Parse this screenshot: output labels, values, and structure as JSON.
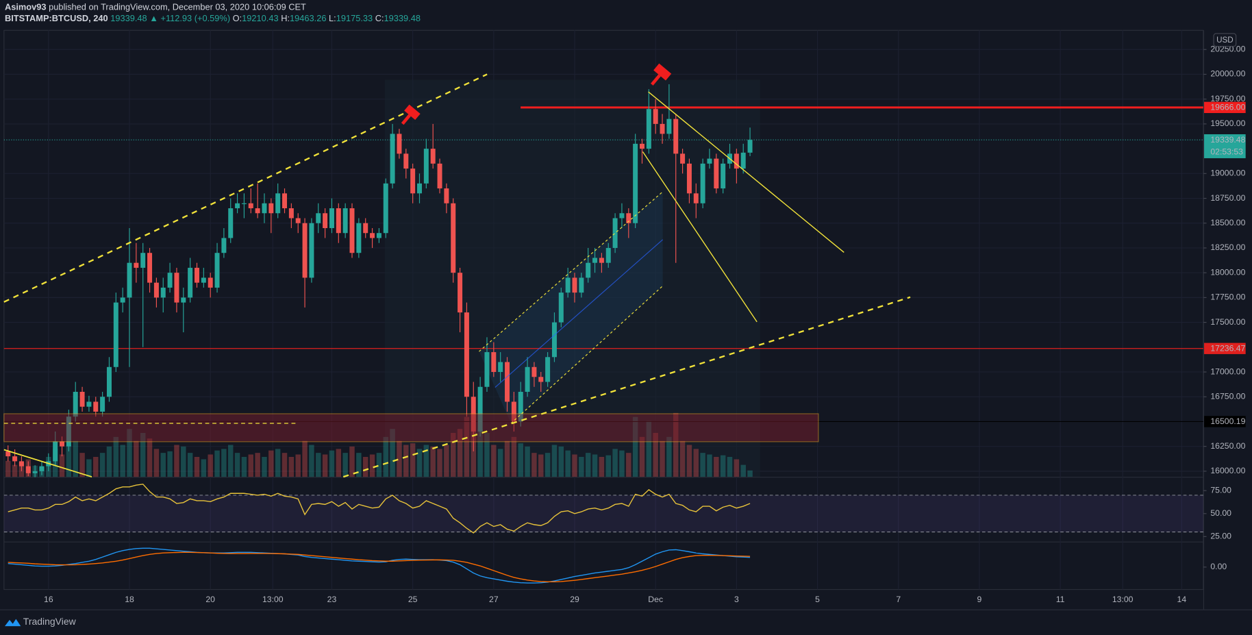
{
  "header": {
    "author": "Asimov93",
    "published": "published on TradingView.com, December 03, 2020 10:06:09 CET",
    "symbol": "BITSTAMP:BTCUSD, 240",
    "change": "▲ +112.93 (+0.59%)",
    "ohlc_labels": [
      "O:",
      "H:",
      "L:",
      "C:"
    ],
    "currency": "USD",
    "countdown": "02:53:53",
    "brand": "TradingView"
  },
  "chart_data": {
    "type": "candlestick",
    "up_color": "#26a69a",
    "down_color": "#ef5350",
    "grid": true,
    "xlim": [
      -0.6,
      177.2
    ],
    "xticks": [
      {
        "value": 6,
        "label": "16"
      },
      {
        "value": 18,
        "label": "18"
      },
      {
        "value": 30,
        "label": "20"
      },
      {
        "value": 39.25,
        "label": "13:00"
      },
      {
        "value": 48,
        "label": "23"
      },
      {
        "value": 60,
        "label": "25"
      },
      {
        "value": 72,
        "label": "27"
      },
      {
        "value": 84,
        "label": "29"
      },
      {
        "value": 96,
        "label": "Dec"
      },
      {
        "value": 108,
        "label": "3"
      },
      {
        "value": 120,
        "label": "5"
      },
      {
        "value": 132,
        "label": "7"
      },
      {
        "value": 144,
        "label": "9"
      },
      {
        "value": 156,
        "label": "11"
      },
      {
        "value": 165.25,
        "label": "13:00"
      },
      {
        "value": 174,
        "label": "14"
      }
    ],
    "ylim": [
      15943,
      20443
    ],
    "yticks": [
      {
        "value": 16000,
        "label": "16000.00"
      },
      {
        "value": 16250,
        "label": "16250.00"
      },
      {
        "value": 16750,
        "label": "16750.00"
      },
      {
        "value": 17000,
        "label": "17000.00"
      },
      {
        "value": 17500,
        "label": "17500.00"
      },
      {
        "value": 17750,
        "label": "17750.00"
      },
      {
        "value": 18000,
        "label": "18000.00"
      },
      {
        "value": 18250,
        "label": "18250.00"
      },
      {
        "value": 18500,
        "label": "18500.00"
      },
      {
        "value": 18750,
        "label": "18750.00"
      },
      {
        "value": 19000,
        "label": "19000.00"
      },
      {
        "value": 19500,
        "label": "19500.00"
      },
      {
        "value": 19750,
        "label": "19750.00"
      },
      {
        "value": 20000,
        "label": "20000.00"
      },
      {
        "value": 20250,
        "label": "20250.00"
      }
    ],
    "levels": [
      {
        "value": 19666,
        "label": "19666.00",
        "color": "#f01e1e"
      },
      {
        "value": 17236.47,
        "label": "17236.47",
        "color": "#e0201e"
      },
      {
        "value": 16500.19,
        "label": "16500.19",
        "color": "#000000"
      }
    ],
    "vlim": [
      0,
      100
    ],
    "candles": [
      [
        16200,
        16260,
        16100,
        16150,
        20
      ],
      [
        16150,
        16220,
        16050,
        16100,
        15
      ],
      [
        16100,
        16150,
        16000,
        16050,
        18
      ],
      [
        16050,
        16100,
        15950,
        15980,
        22
      ],
      [
        15980,
        16060,
        15940,
        16000,
        14
      ],
      [
        16000,
        16100,
        15960,
        16050,
        12
      ],
      [
        16050,
        16180,
        16000,
        16100,
        25
      ],
      [
        16100,
        16400,
        16050,
        16300,
        35
      ],
      [
        16300,
        16350,
        16150,
        16250,
        28
      ],
      [
        16250,
        16620,
        16200,
        16550,
        40
      ],
      [
        16550,
        16900,
        16500,
        16800,
        45
      ],
      [
        16800,
        16850,
        16600,
        16650,
        30
      ],
      [
        16650,
        16760,
        16600,
        16700,
        22
      ],
      [
        16700,
        16750,
        16550,
        16600,
        25
      ],
      [
        16600,
        16800,
        16550,
        16750,
        30
      ],
      [
        16750,
        17150,
        16700,
        17050,
        38
      ],
      [
        17050,
        17800,
        17000,
        17700,
        50
      ],
      [
        17700,
        17850,
        17600,
        17750,
        40
      ],
      [
        17750,
        18450,
        17050,
        18100,
        60
      ],
      [
        18100,
        18300,
        17900,
        18050,
        45
      ],
      [
        18050,
        18300,
        17250,
        18200,
        55
      ],
      [
        18200,
        18250,
        17800,
        17900,
        48
      ],
      [
        17900,
        17950,
        17650,
        17750,
        35
      ],
      [
        17750,
        17950,
        17600,
        17850,
        30
      ],
      [
        17850,
        18100,
        17800,
        18000,
        32
      ],
      [
        18000,
        18050,
        17600,
        17700,
        40
      ],
      [
        17700,
        17850,
        17400,
        17750,
        38
      ],
      [
        17750,
        18150,
        17700,
        18050,
        30
      ],
      [
        18050,
        18100,
        17850,
        17900,
        25
      ],
      [
        17900,
        18050,
        17850,
        17950,
        22
      ],
      [
        17950,
        18000,
        17750,
        17850,
        28
      ],
      [
        17850,
        18300,
        17800,
        18200,
        33
      ],
      [
        18200,
        18450,
        18150,
        18350,
        35
      ],
      [
        18350,
        18750,
        18300,
        18650,
        40
      ],
      [
        18650,
        18800,
        18600,
        18700,
        30
      ],
      [
        18700,
        18800,
        18550,
        18700,
        25
      ],
      [
        18700,
        18850,
        18600,
        18650,
        28
      ],
      [
        18650,
        18900,
        18550,
        18600,
        30
      ],
      [
        18600,
        18800,
        18500,
        18700,
        25
      ],
      [
        18700,
        18750,
        18400,
        18600,
        33
      ],
      [
        18600,
        18900,
        18550,
        18800,
        35
      ],
      [
        18800,
        18850,
        18600,
        18650,
        30
      ],
      [
        18650,
        18700,
        18450,
        18550,
        25
      ],
      [
        18550,
        18600,
        18400,
        18500,
        28
      ],
      [
        18500,
        18550,
        17650,
        17950,
        45
      ],
      [
        17950,
        18550,
        17900,
        18500,
        40
      ],
      [
        18500,
        18700,
        18400,
        18600,
        30
      ],
      [
        18600,
        18650,
        18350,
        18450,
        28
      ],
      [
        18450,
        18750,
        18400,
        18650,
        33
      ],
      [
        18650,
        18700,
        18300,
        18400,
        35
      ],
      [
        18400,
        18700,
        18350,
        18650,
        30
      ],
      [
        18650,
        18700,
        18150,
        18200,
        38
      ],
      [
        18200,
        18550,
        18150,
        18500,
        30
      ],
      [
        18500,
        18550,
        18350,
        18400,
        25
      ],
      [
        18400,
        18450,
        18250,
        18350,
        28
      ],
      [
        18350,
        18450,
        18300,
        18400,
        30
      ],
      [
        18400,
        18950,
        18350,
        18900,
        50
      ],
      [
        18900,
        19500,
        18850,
        19400,
        60
      ],
      [
        19400,
        19450,
        19150,
        19200,
        45
      ],
      [
        19200,
        19250,
        18950,
        19050,
        40
      ],
      [
        19050,
        19100,
        18700,
        18800,
        42
      ],
      [
        18800,
        19000,
        18700,
        18900,
        35
      ],
      [
        18900,
        19350,
        18850,
        19250,
        40
      ],
      [
        19250,
        19500,
        19050,
        19100,
        38
      ],
      [
        19100,
        19150,
        18800,
        18850,
        35
      ],
      [
        18850,
        18900,
        18600,
        18700,
        40
      ],
      [
        18700,
        18750,
        17900,
        18000,
        55
      ],
      [
        18000,
        18050,
        17400,
        17600,
        60
      ],
      [
        17600,
        17700,
        16550,
        16750,
        75
      ],
      [
        16750,
        16900,
        16200,
        16400,
        80
      ],
      [
        16400,
        16950,
        16350,
        16850,
        60
      ],
      [
        16850,
        17350,
        16800,
        17200,
        55
      ],
      [
        17200,
        17300,
        16950,
        17000,
        40
      ],
      [
        17000,
        17200,
        16900,
        17100,
        35
      ],
      [
        17100,
        17150,
        16600,
        16700,
        45
      ],
      [
        16700,
        16800,
        16400,
        16500,
        50
      ],
      [
        16500,
        16900,
        16450,
        16800,
        42
      ],
      [
        16800,
        17150,
        16750,
        17050,
        38
      ],
      [
        17050,
        17100,
        16850,
        16950,
        30
      ],
      [
        16950,
        17000,
        16800,
        16900,
        28
      ],
      [
        16900,
        17200,
        16850,
        17150,
        30
      ],
      [
        17150,
        17600,
        17100,
        17500,
        40
      ],
      [
        17500,
        17850,
        17450,
        17800,
        38
      ],
      [
        17800,
        18050,
        17750,
        17950,
        33
      ],
      [
        17950,
        18000,
        17700,
        17800,
        28
      ],
      [
        17800,
        18000,
        17750,
        17950,
        25
      ],
      [
        17950,
        18250,
        17900,
        18100,
        30
      ],
      [
        18100,
        18250,
        18000,
        18150,
        28
      ],
      [
        18150,
        18200,
        18000,
        18100,
        25
      ],
      [
        18100,
        18300,
        18050,
        18250,
        27
      ],
      [
        18250,
        18600,
        18200,
        18550,
        35
      ],
      [
        18550,
        18700,
        18450,
        18600,
        33
      ],
      [
        18600,
        18650,
        18350,
        18500,
        30
      ],
      [
        18500,
        19400,
        18450,
        19300,
        75
      ],
      [
        19300,
        19350,
        19100,
        19250,
        50
      ],
      [
        19250,
        19850,
        19200,
        19650,
        70
      ],
      [
        19650,
        19750,
        19400,
        19500,
        55
      ],
      [
        19500,
        19600,
        19300,
        19400,
        45
      ],
      [
        19400,
        19900,
        19350,
        19550,
        50
      ],
      [
        19550,
        19600,
        18100,
        19200,
        80
      ],
      [
        19200,
        19250,
        19000,
        19100,
        45
      ],
      [
        19100,
        19150,
        18700,
        18800,
        40
      ],
      [
        18800,
        18900,
        18550,
        18700,
        35
      ],
      [
        18700,
        19150,
        18650,
        19100,
        30
      ],
      [
        19100,
        19250,
        19050,
        19150,
        28
      ],
      [
        19150,
        19200,
        18800,
        18850,
        25
      ],
      [
        18850,
        19150,
        18800,
        19100,
        27
      ],
      [
        19100,
        19300,
        19050,
        19200,
        25
      ],
      [
        19200,
        19250,
        18900,
        19050,
        22
      ],
      [
        19050,
        19300,
        19000,
        19210.43,
        15
      ],
      [
        19210.43,
        19463.26,
        19175.33,
        19339.48,
        8
      ]
    ],
    "rsi_color": "#e8c33a",
    "rsilim": [
      19.6,
      89.1
    ],
    "rsi_bands": [
      70,
      30
    ],
    "rsiticks": [
      {
        "value": 75,
        "label": "75.00"
      },
      {
        "value": 50,
        "label": "50.00"
      },
      {
        "value": 25,
        "label": "25.00"
      }
    ],
    "rsi": [
      52,
      54,
      56,
      56,
      54,
      54,
      56,
      60,
      60,
      63,
      68,
      64,
      66,
      64,
      68,
      72,
      77,
      79,
      79,
      81,
      82,
      74,
      68,
      68,
      66,
      61,
      62,
      66,
      64,
      64,
      63,
      66,
      68,
      72,
      72,
      72,
      71,
      70,
      71,
      69,
      72,
      69,
      68,
      66,
      49,
      60,
      61,
      60,
      63,
      58,
      62,
      55,
      60,
      58,
      56,
      57,
      66,
      70,
      64,
      61,
      56,
      58,
      64,
      61,
      58,
      55,
      45,
      40,
      34,
      29,
      36,
      40,
      36,
      38,
      33,
      31,
      36,
      40,
      38,
      37,
      40,
      47,
      52,
      53,
      50,
      52,
      55,
      56,
      54,
      56,
      60,
      61,
      58,
      71,
      69,
      76,
      71,
      68,
      71,
      61,
      59,
      54,
      52,
      58,
      58,
      53,
      57,
      59,
      56,
      58,
      61
    ],
    "macdlim": [
      -380,
      420
    ],
    "macdticks": [
      {
        "value": 0,
        "label": "0.00"
      }
    ],
    "macd_series": [
      {
        "color": "#2196f3",
        "values": [
          60,
          50,
          40,
          30,
          20,
          15,
          15,
          20,
          30,
          45,
          60,
          80,
          100,
          130,
          170,
          210,
          250,
          280,
          300,
          315,
          320,
          320,
          310,
          300,
          290,
          280,
          270,
          260,
          250,
          245,
          240,
          240,
          240,
          245,
          250,
          250,
          250,
          245,
          240,
          235,
          230,
          225,
          215,
          205,
          180,
          165,
          155,
          145,
          135,
          125,
          115,
          105,
          100,
          95,
          90,
          85,
          90,
          115,
          130,
          135,
          130,
          125,
          125,
          125,
          120,
          110,
          85,
          40,
          -30,
          -100,
          -150,
          -180,
          -200,
          -220,
          -240,
          -255,
          -265,
          -270,
          -270,
          -265,
          -255,
          -235,
          -210,
          -185,
          -160,
          -140,
          -120,
          -100,
          -85,
          -70,
          -55,
          -40,
          -10,
          40,
          100,
          160,
          220,
          260,
          290,
          295,
          280,
          260,
          240,
          225,
          215,
          205,
          195,
          185,
          175,
          170,
          165
        ]
      },
      {
        "color": "#ff6d00",
        "values": [
          80,
          75,
          70,
          65,
          55,
          50,
          45,
          40,
          38,
          38,
          40,
          45,
          52,
          60,
          70,
          85,
          100,
          120,
          145,
          170,
          195,
          215,
          230,
          240,
          245,
          248,
          250,
          250,
          248,
          245,
          240,
          235,
          232,
          230,
          230,
          230,
          232,
          232,
          232,
          230,
          228,
          225,
          220,
          215,
          205,
          195,
          185,
          175,
          165,
          155,
          145,
          135,
          125,
          118,
          110,
          105,
          100,
          100,
          105,
          110,
          115,
          118,
          120,
          122,
          122,
          120,
          115,
          100,
          80,
          50,
          20,
          -20,
          -60,
          -100,
          -140,
          -175,
          -200,
          -220,
          -235,
          -245,
          -250,
          -250,
          -245,
          -235,
          -225,
          -210,
          -195,
          -180,
          -165,
          -150,
          -135,
          -120,
          -100,
          -80,
          -55,
          -25,
          10,
          50,
          90,
          130,
          160,
          180,
          195,
          200,
          200,
          198,
          195,
          192,
          188,
          185,
          182
        ]
      }
    ]
  }
}
